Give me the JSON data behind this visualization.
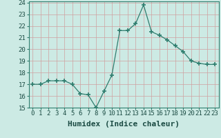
{
  "x": [
    0,
    1,
    2,
    3,
    4,
    5,
    6,
    7,
    8,
    9,
    10,
    11,
    12,
    13,
    14,
    15,
    16,
    17,
    18,
    19,
    20,
    21,
    22,
    23
  ],
  "y": [
    17.0,
    17.0,
    17.3,
    17.3,
    17.3,
    17.0,
    16.2,
    16.1,
    15.0,
    16.4,
    17.8,
    21.6,
    21.6,
    22.2,
    23.8,
    21.5,
    21.2,
    20.8,
    20.3,
    19.8,
    19.0,
    18.8,
    18.7,
    18.7
  ],
  "line_color": "#2e7d6e",
  "marker": "+",
  "marker_size": 4,
  "bg_color": "#cceae4",
  "grid_color": "#b0d8d0",
  "xlabel": "Humidex (Indice chaleur)",
  "ylim": [
    15,
    24
  ],
  "xlim": [
    -0.5,
    23.5
  ],
  "yticks": [
    15,
    16,
    17,
    18,
    19,
    20,
    21,
    22,
    23,
    24
  ],
  "xticks": [
    0,
    1,
    2,
    3,
    4,
    5,
    6,
    7,
    8,
    9,
    10,
    11,
    12,
    13,
    14,
    15,
    16,
    17,
    18,
    19,
    20,
    21,
    22,
    23
  ],
  "tick_label_fontsize": 6.5,
  "xlabel_fontsize": 8
}
